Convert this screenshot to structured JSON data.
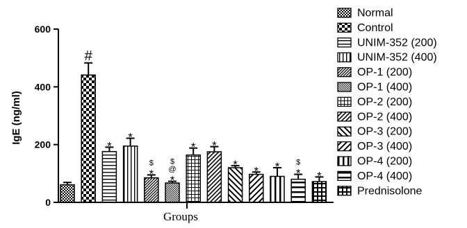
{
  "chart_data": {
    "type": "bar",
    "title": "",
    "xlabel": "Groups",
    "ylabel": "IgE (ng/ml)",
    "ylim": [
      0,
      600
    ],
    "yticks": [
      0,
      200,
      400,
      600
    ],
    "grid": false,
    "legend_position": "right",
    "categories": [
      "Normal",
      "Control",
      "UNIM-352 (200)",
      "UNIM-352 (400)",
      "OP-1 (200)",
      "OP-1 (400)",
      "OP-2 (200)",
      "OP-2 (400)",
      "OP-3 (200)",
      "OP-3 (400)",
      "OP-4 (200)",
      "OP-4 (400)",
      "Prednisolone"
    ],
    "values": [
      61,
      441,
      176,
      195,
      85,
      67,
      164,
      175,
      120,
      97,
      90,
      80,
      72
    ],
    "errors": [
      8,
      42,
      15,
      27,
      10,
      6,
      24,
      18,
      7,
      8,
      30,
      17,
      16
    ],
    "significance": [
      "",
      "#",
      "*",
      "*",
      "$\n*",
      "$\n@\n*",
      "*",
      "*",
      "*",
      "*",
      "*",
      "$\n*",
      "*"
    ],
    "patterns": [
      "dense-check",
      "check",
      "hstripe",
      "vstripe",
      "diag-fwd-dense",
      "diag-back-fine",
      "grid",
      "diag-fwd",
      "diag-back-wide",
      "diag-fwd-wide",
      "vstripe-thick",
      "hstripe-thick",
      "grid-thick"
    ]
  }
}
